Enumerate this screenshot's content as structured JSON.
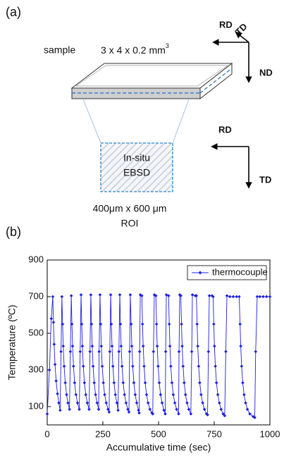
{
  "panel_a": {
    "label": "(a)",
    "sample": "sample",
    "dimensions": {
      "text": "3 x 4 x 0.2 mm",
      "superscript": "3"
    },
    "axes_top": {
      "x": "RD",
      "diag": "TD",
      "down": "ND"
    },
    "axes_bottom": {
      "x": "RD",
      "down": "TD"
    },
    "roi_box": [
      "In-situ",
      "EBSD"
    ],
    "roi_caption": [
      "400μm x 600 μm",
      "ROI"
    ]
  },
  "panel_b": {
    "label": "(b)"
  },
  "chart_data": {
    "type": "line",
    "xlabel": "Accumulative time (sec)",
    "ylabel": "Temperature (ºC)",
    "xlim": [
      0,
      1000
    ],
    "xticks": [
      0,
      250,
      500,
      750,
      1000
    ],
    "ylim": [
      0,
      900
    ],
    "yticks": [
      100,
      300,
      500,
      700,
      900
    ],
    "legend": "upper right",
    "series": [
      {
        "name": "thermocouple",
        "color": "#1f1fe0",
        "x": [
          0,
          10,
          18,
          25,
          28,
          31,
          35,
          40,
          46,
          52,
          58,
          62,
          66,
          69,
          72,
          76,
          81,
          87,
          93,
          100,
          104,
          108,
          111,
          114,
          118,
          123,
          129,
          136,
          144,
          148,
          152,
          155,
          158,
          162,
          167,
          173,
          180,
          188,
          192,
          196,
          199,
          202,
          206,
          211,
          217,
          224,
          231,
          233,
          237,
          240,
          243,
          247,
          252,
          258,
          265,
          273,
          278,
          281,
          285,
          288,
          291,
          295,
          300,
          306,
          313,
          318,
          322,
          326,
          329,
          332,
          336,
          341,
          347,
          354,
          362,
          367,
          370,
          373,
          377,
          380,
          384,
          389,
          395,
          402,
          410,
          413,
          415,
          418,
          425,
          428,
          431,
          435,
          440,
          446,
          453,
          461,
          470,
          474,
          477,
          481,
          488,
          491,
          494,
          498,
          503,
          509,
          516,
          524,
          530,
          532,
          535,
          545,
          548,
          551,
          555,
          560,
          566,
          573,
          581,
          590,
          592,
          595,
          600,
          603,
          606,
          610,
          615,
          621,
          628,
          636,
          645,
          649,
          652,
          665,
          670,
          673,
          676,
          680,
          685,
          691,
          698,
          706,
          715,
          720,
          724,
          728,
          740,
          745,
          748,
          751,
          755,
          760,
          766,
          773,
          781,
          790,
          797,
          802,
          807,
          820,
          835,
          850,
          862,
          866,
          869,
          873,
          878,
          884,
          891,
          899,
          910,
          925,
          932,
          936,
          943,
          955,
          970,
          985,
          1000
        ],
        "values": [
          60,
          300,
          580,
          700,
          560,
          440,
          330,
          240,
          170,
          120,
          80,
          400,
          700,
          550,
          430,
          320,
          230,
          165,
          120,
          85,
          400,
          705,
          550,
          430,
          320,
          230,
          165,
          120,
          85,
          400,
          710,
          550,
          430,
          320,
          230,
          165,
          120,
          85,
          400,
          710,
          550,
          430,
          320,
          230,
          165,
          120,
          85,
          400,
          710,
          550,
          430,
          320,
          230,
          165,
          120,
          85,
          70,
          400,
          710,
          550,
          430,
          320,
          230,
          165,
          120,
          80,
          400,
          710,
          550,
          430,
          320,
          230,
          165,
          120,
          85,
          70,
          400,
          710,
          550,
          430,
          320,
          230,
          165,
          120,
          80,
          65,
          400,
          710,
          705,
          550,
          430,
          320,
          230,
          165,
          120,
          85,
          65,
          60,
          400,
          710,
          705,
          550,
          430,
          320,
          230,
          165,
          120,
          80,
          60,
          400,
          710,
          705,
          550,
          430,
          320,
          230,
          165,
          120,
          85,
          60,
          400,
          710,
          705,
          550,
          430,
          320,
          230,
          165,
          120,
          85,
          60,
          400,
          710,
          705,
          705,
          550,
          430,
          320,
          230,
          165,
          120,
          85,
          60,
          55,
          400,
          705,
          705,
          700,
          550,
          430,
          320,
          230,
          165,
          120,
          85,
          60,
          50,
          400,
          705,
          700,
          700,
          700,
          700,
          550,
          430,
          320,
          230,
          165,
          120,
          85,
          60,
          45,
          40,
          400,
          700,
          700,
          700,
          700,
          700
        ]
      }
    ]
  }
}
